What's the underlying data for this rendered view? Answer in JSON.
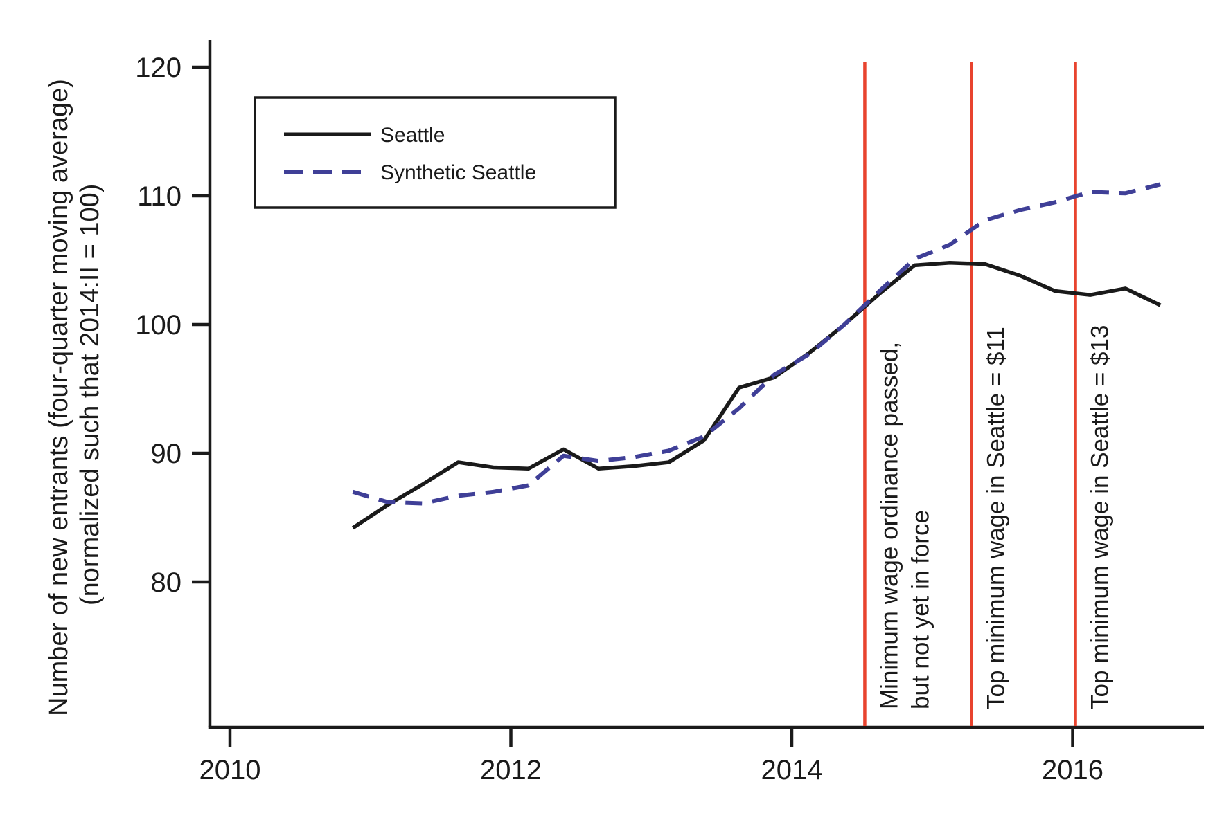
{
  "chart_data": {
    "type": "line",
    "ylabel_line1": "Number of new entrants (four-quarter moving average)",
    "ylabel_line2": "(normalized such that 2014:II = 100)",
    "x_years": [
      2010.875,
      2011.125,
      2011.375,
      2011.625,
      2011.875,
      2012.125,
      2012.375,
      2012.625,
      2012.875,
      2013.125,
      2013.375,
      2013.625,
      2013.875,
      2014.125,
      2014.375,
      2014.625,
      2014.875,
      2015.125,
      2015.375,
      2015.625,
      2015.875,
      2016.125,
      2016.375,
      2016.625
    ],
    "series": [
      {
        "name": "Seattle",
        "color": "#1a1a1a",
        "style": "solid",
        "values": [
          84.2,
          86.0,
          87.6,
          89.3,
          88.9,
          88.8,
          90.3,
          88.8,
          89.0,
          89.3,
          91.0,
          95.1,
          95.9,
          97.8,
          100.0,
          102.4,
          104.6,
          104.8,
          104.7,
          103.8,
          102.6,
          102.3,
          102.8,
          101.5
        ]
      },
      {
        "name": "Synthetic Seattle",
        "color": "#3f3f97",
        "style": "dashed",
        "values": [
          87.0,
          86.2,
          86.1,
          86.7,
          87.0,
          87.5,
          89.8,
          89.4,
          89.7,
          90.2,
          91.3,
          93.5,
          96.1,
          97.7,
          100.0,
          102.6,
          105.1,
          106.2,
          108.1,
          108.9,
          109.5,
          110.3,
          110.2,
          110.9
        ]
      }
    ],
    "xticks": [
      2010,
      2012,
      2014,
      2016
    ],
    "yticks": [
      120,
      110,
      100,
      90,
      80
    ],
    "xlim": [
      2009.86,
      2016.93
    ],
    "ylim": [
      68.7,
      122.1
    ],
    "grid": false,
    "legend_position": "upper-left",
    "vlines": [
      {
        "x_year": 2014.52,
        "color": "#e8432e",
        "label_lines": [
          "Minimum wage ordinance passed,",
          "but not yet in force"
        ]
      },
      {
        "x_year": 2015.28,
        "color": "#e8432e",
        "label_lines": [
          "Top minimum wage in Seattle = $11"
        ]
      },
      {
        "x_year": 2016.02,
        "color": "#e8432e",
        "label_lines": [
          "Top minimum wage in Seattle = $13"
        ]
      }
    ]
  }
}
